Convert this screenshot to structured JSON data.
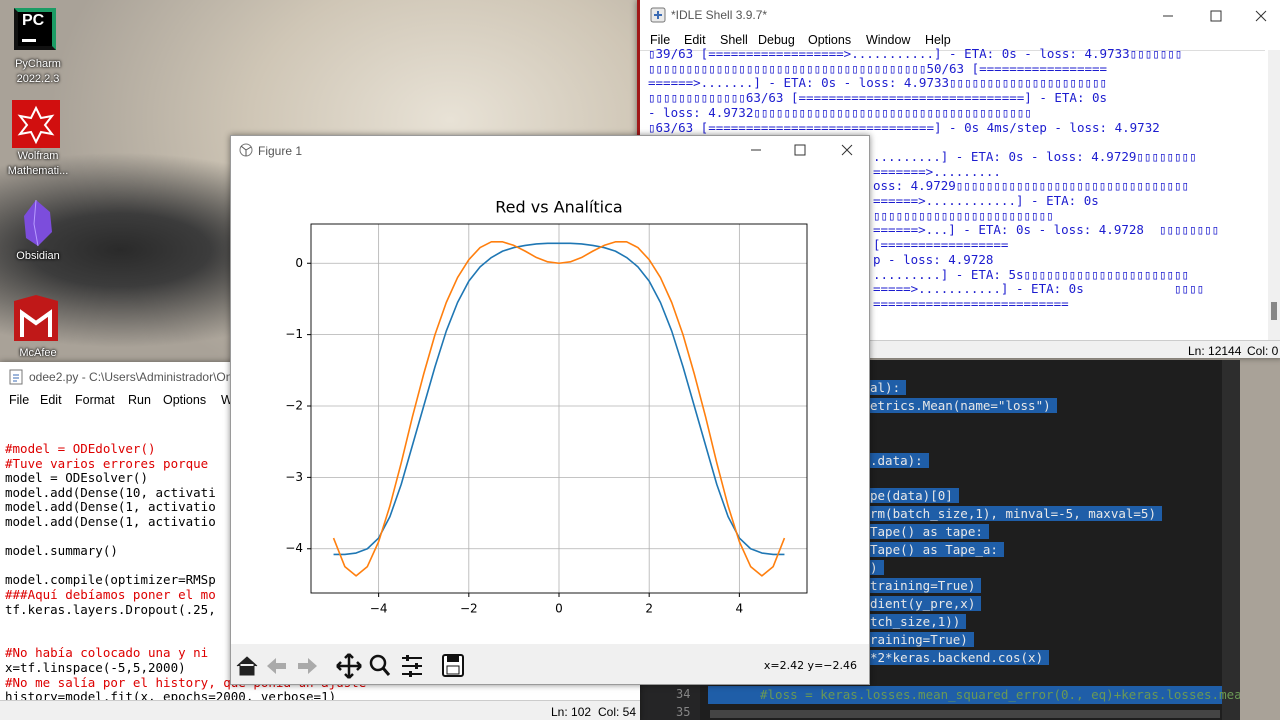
{
  "desktop": {
    "icons": [
      {
        "logo": "PC",
        "label": [
          "PyCharm",
          "2022.2.3"
        ]
      },
      {
        "label": [
          "Wolfram",
          "Mathemati..."
        ]
      },
      {
        "label": [
          "Obsidian"
        ]
      },
      {
        "label": [
          "McAfee"
        ]
      }
    ]
  },
  "idle_shell": {
    "title": "*IDLE Shell 3.9.7*",
    "menu": [
      "File",
      "Edit",
      "Shell",
      "Debug",
      "Options",
      "Window",
      "Help"
    ],
    "lines": [
      "▯39/63 [==================>...........] - ETA: 0s - loss: 4.9733▯▯▯▯▯▯▯",
      "▯▯▯▯▯▯▯▯▯▯▯▯▯▯▯▯▯▯▯▯▯▯▯▯▯▯▯▯▯▯▯▯▯▯▯▯▯50/63 [=================",
      "======>.......] - ETA: 0s - loss: 4.9733▯▯▯▯▯▯▯▯▯▯▯▯▯▯▯▯▯▯▯▯▯",
      "▯▯▯▯▯▯▯▯▯▯▯▯▯63/63 [==============================] - ETA: 0s",
      "- loss: 4.9732▯▯▯▯▯▯▯▯▯▯▯▯▯▯▯▯▯▯▯▯▯▯▯▯▯▯▯▯▯▯▯▯▯▯▯▯▯",
      "▯63/63 [==============================] - 0s 4ms/step - loss: 4.9732",
      "",
      ".........] - ETA: 0s - loss: 4.9729▯▯▯▯▯▯▯▯",
      "=======>.........",
      "oss: 4.9729▯▯▯▯▯▯▯▯▯▯▯▯▯▯▯▯▯▯▯▯▯▯▯▯▯▯▯▯▯▯▯",
      "======>............] - ETA: 0s",
      "▯▯▯▯▯▯▯▯▯▯▯▯▯▯▯▯▯▯▯▯▯▯▯▯",
      "======>...] - ETA: 0s - loss: 4.9728  ▯▯▯▯▯▯▯▯",
      "[=================",
      "p - loss: 4.9728",
      ".........] - ETA: 5s▯▯▯▯▯▯▯▯▯▯▯▯▯▯▯▯▯▯▯▯▯▯",
      "=====>...........] - ETA: 0s            ▯▯▯▯",
      "=========================="
    ],
    "status": {
      "ln": "Ln: 12144",
      "col": "Col: 0"
    }
  },
  "editor": {
    "title": "odee2.py - C:\\Users\\Administrador\\On",
    "menu": [
      "File",
      "Edit",
      "Format",
      "Run",
      "Options",
      "W"
    ],
    "lines": [
      "#model = ODEdolver()",
      "#Tuve varios errores porque",
      "model = ODEsolver()",
      "model.add(Dense(10, activati",
      "model.add(Dense(1, activatio",
      "model.add(Dense(1, activatio",
      "",
      "model.summary()",
      "",
      "model.compile(optimizer=RMSp",
      "###Aquí debíamos poner el mo",
      "tf.keras.layers.Dropout(.25,",
      "",
      "",
      "#No había colocado una y ni",
      "x=tf.linspace(-5,5,2000)",
      "#No me salía por el history, que ponía un ajuste",
      "history=model.fit(x, epochs=2000, verbose=1)"
    ],
    "status": {
      "ln": "Ln: 102",
      "col": "Col: 54"
    }
  },
  "dark_editor": {
    "lines": [
      "al):",
      "etrics.Mean(name=\"loss\")",
      "",
      ".data):",
      "",
      "pe(data)[0]",
      "rm(batch_size,1), minval=-5, maxval=5)",
      "Tape() as tape:",
      "Tape() as Tape_a:",
      ")",
      "training=True)",
      "dient(y_pre,x)",
      "tch_size,1))",
      "raining=True)",
      "*2*keras.backend.cos(x)"
    ],
    "line_numbers": [
      "34",
      "35"
    ],
    "bottom_line": "#loss = keras.losses.mean_squared_error(0., eq)+keras.losses.mean_squa"
  },
  "figure_window": {
    "title": "Figure 1",
    "coords": "x=2.42 y=−2.46"
  },
  "chart_data": {
    "type": "line",
    "title": "Red vs Analítica",
    "x": [
      -5,
      -4.75,
      -4.5,
      -4.25,
      -4,
      -3.75,
      -3.5,
      -3.25,
      -3,
      -2.75,
      -2.5,
      -2.25,
      -2,
      -1.75,
      -1.5,
      -1.25,
      -1,
      -0.75,
      -0.5,
      -0.25,
      0,
      0.25,
      0.5,
      0.75,
      1,
      1.25,
      1.5,
      1.75,
      2,
      2.25,
      2.5,
      2.75,
      3,
      3.25,
      3.5,
      3.75,
      4,
      4.25,
      4.5,
      4.75,
      5
    ],
    "series": [
      {
        "color": "#1f77b4",
        "values": [
          -4.08,
          -4.08,
          -4.06,
          -4.0,
          -3.85,
          -3.55,
          -3.1,
          -2.55,
          -2.0,
          -1.45,
          -0.95,
          -0.55,
          -0.25,
          -0.05,
          0.08,
          0.17,
          0.22,
          0.25,
          0.27,
          0.28,
          0.28,
          0.28,
          0.27,
          0.25,
          0.22,
          0.17,
          0.08,
          -0.05,
          -0.25,
          -0.55,
          -0.95,
          -1.45,
          -2.0,
          -2.55,
          -3.1,
          -3.55,
          -3.85,
          -4.0,
          -4.06,
          -4.08,
          -4.08
        ]
      },
      {
        "color": "#ff7f0e",
        "values": [
          -3.85,
          -4.25,
          -4.38,
          -4.25,
          -3.9,
          -3.4,
          -2.8,
          -2.15,
          -1.55,
          -1.0,
          -0.55,
          -0.2,
          0.05,
          0.22,
          0.3,
          0.3,
          0.25,
          0.17,
          0.08,
          0.02,
          0,
          0.02,
          0.08,
          0.17,
          0.25,
          0.3,
          0.3,
          0.22,
          0.05,
          -0.2,
          -0.55,
          -1.0,
          -1.55,
          -2.15,
          -2.8,
          -3.4,
          -3.9,
          -4.25,
          -4.38,
          -4.25,
          -3.85
        ]
      }
    ],
    "xlim": [
      -5.5,
      5.5
    ],
    "ylim": [
      -4.62,
      0.55
    ],
    "xticks": [
      {
        "value": -4,
        "label": "−4"
      },
      {
        "value": -2,
        "label": "−2"
      },
      0,
      2,
      4
    ],
    "yticks": [
      0,
      {
        "value": -1,
        "label": "−1"
      },
      {
        "value": -2,
        "label": "−2"
      },
      {
        "value": -3,
        "label": "−3"
      },
      {
        "value": -4,
        "label": "−4"
      }
    ],
    "grid": true
  }
}
